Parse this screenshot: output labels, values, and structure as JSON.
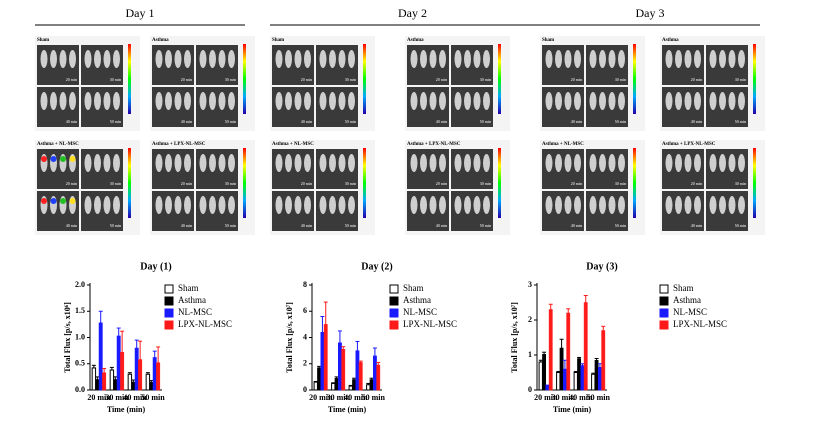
{
  "panels": {
    "days": [
      {
        "title": "Day 1",
        "labels": [
          "Sham",
          "Asthma",
          "Asthma + NL-MSC",
          "Asthma + LPX-NL-MSC"
        ]
      },
      {
        "title": "Day 2",
        "labels": [
          "Sham",
          "Asthma",
          "Asthma + NL-MSC",
          "Asthma + LPX-NL-MSC"
        ]
      },
      {
        "title": "Day 3",
        "labels": [
          "Sham",
          "Asthma",
          "Asthma + NL-MSC",
          "Asthma + LPX-NL-MSC"
        ]
      }
    ],
    "times": [
      "20 min",
      "30 min",
      "40 min",
      "50 min"
    ]
  },
  "chart_data": [
    {
      "type": "bar",
      "title": "Day (1)",
      "y_label": "Total Flux [p/s, x10⁶]",
      "x_label": "Time (min)",
      "categories": [
        "20 min",
        "30 min",
        "40 min",
        "50 min"
      ],
      "ylim": [
        0,
        2.0
      ],
      "yticks": [
        {
          "value": 0,
          "label": "0.0"
        },
        0.5,
        {
          "value": 1.0,
          "label": "1.0"
        },
        1.5,
        {
          "value": 2.0,
          "label": "2.0"
        }
      ],
      "series": [
        {
          "name": "Sham",
          "color": "#ffffff",
          "values": [
            0.42,
            0.38,
            0.3,
            0.3
          ],
          "errors": [
            0.05,
            0.05,
            0.03,
            0.03
          ]
        },
        {
          "name": "Asthma",
          "color": "#000000",
          "values": [
            0.2,
            0.2,
            0.15,
            0.15
          ],
          "errors": [
            0.05,
            0.05,
            0.04,
            0.03
          ]
        },
        {
          "name": "NL-MSC",
          "color": "#1a1aff",
          "values": [
            1.28,
            1.03,
            0.8,
            0.62
          ],
          "errors": [
            0.22,
            0.15,
            0.15,
            0.12
          ]
        },
        {
          "name": "LPX-NL-MSC",
          "color": "#ff1a1a",
          "values": [
            0.33,
            0.72,
            0.58,
            0.52
          ],
          "errors": [
            0.08,
            0.4,
            0.35,
            0.3
          ]
        }
      ]
    },
    {
      "type": "bar",
      "title": "Day (2)",
      "y_label": "Total Flux [p/s, x10⁷]",
      "x_label": "Time (min)",
      "categories": [
        "20 min",
        "30 min",
        "40 min",
        "50 min"
      ],
      "ylim": [
        0,
        8
      ],
      "yticks": [
        0,
        2,
        4,
        6,
        8
      ],
      "series": [
        {
          "name": "Sham",
          "color": "#ffffff",
          "values": [
            0.6,
            0.5,
            0.3,
            0.4
          ],
          "errors": [
            0.05,
            0.05,
            0.05,
            0.1
          ]
        },
        {
          "name": "Asthma",
          "color": "#000000",
          "values": [
            1.7,
            0.9,
            0.8,
            0.8
          ],
          "errors": [
            0.1,
            0.1,
            0.1,
            0.1
          ]
        },
        {
          "name": "NL-MSC",
          "color": "#1a1aff",
          "values": [
            4.4,
            3.6,
            3.0,
            2.6
          ],
          "errors": [
            1.2,
            0.9,
            0.7,
            0.6
          ]
        },
        {
          "name": "LPX-NL-MSC",
          "color": "#ff1a1a",
          "values": [
            5.0,
            3.1,
            2.1,
            1.9
          ],
          "errors": [
            1.7,
            0.2,
            0.1,
            0.2
          ]
        }
      ]
    },
    {
      "type": "bar",
      "title": "Day (3)",
      "y_label": "Total Flux [p/s, x10⁷]",
      "x_label": "Time (min)",
      "categories": [
        "20 min",
        "30 min",
        "40 min",
        "50 min"
      ],
      "ylim": [
        0,
        3
      ],
      "yticks": [
        0,
        1,
        2,
        3
      ],
      "series": [
        {
          "name": "Sham",
          "color": "#ffffff",
          "values": [
            0.8,
            0.5,
            0.5,
            0.45
          ],
          "errors": [
            0.05,
            0.03,
            0.03,
            0.03
          ]
        },
        {
          "name": "Asthma",
          "color": "#000000",
          "values": [
            1.02,
            1.2,
            0.9,
            0.85
          ],
          "errors": [
            0.06,
            0.25,
            0.03,
            0.05
          ]
        },
        {
          "name": "NL-MSC",
          "color": "#1a1aff",
          "values": [
            0.12,
            0.6,
            0.7,
            0.65
          ],
          "errors": [
            0.02,
            0.25,
            0.05,
            0.1
          ]
        },
        {
          "name": "LPX-NL-MSC",
          "color": "#ff1a1a",
          "values": [
            2.3,
            2.2,
            2.5,
            1.7
          ],
          "errors": [
            0.15,
            0.12,
            0.2,
            0.12
          ]
        }
      ]
    }
  ]
}
